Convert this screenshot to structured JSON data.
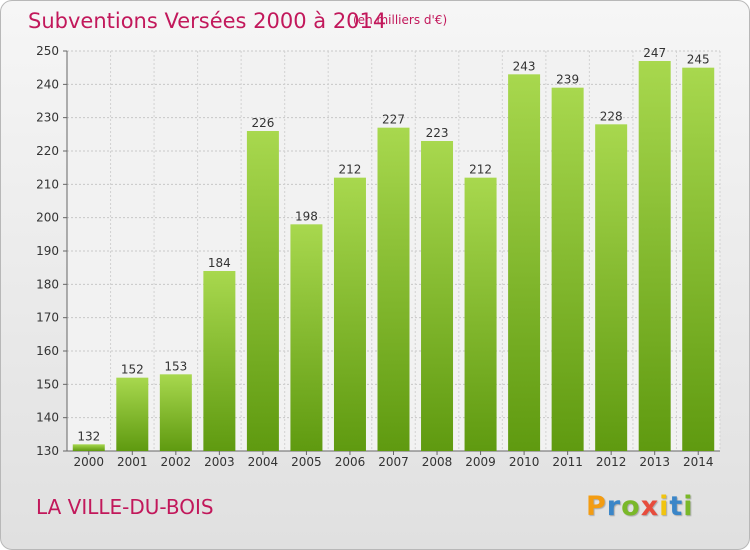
{
  "chart_data": {
    "type": "bar",
    "title": "Subventions Versées 2000 à 2014",
    "unit_label": "(en milliers d'€)",
    "categories": [
      "2000",
      "2001",
      "2002",
      "2003",
      "2004",
      "2005",
      "2006",
      "2007",
      "2008",
      "2009",
      "2010",
      "2011",
      "2012",
      "2013",
      "2014"
    ],
    "values": [
      132,
      152,
      153,
      184,
      226,
      198,
      212,
      227,
      223,
      212,
      243,
      239,
      228,
      247,
      245
    ],
    "ylim": [
      130,
      250
    ],
    "yticks": [
      130,
      140,
      150,
      160,
      170,
      180,
      190,
      200,
      210,
      220,
      230,
      240,
      250
    ],
    "grid": true,
    "bar_color_light": "#a8d84e",
    "bar_color_dark": "#5f9a10"
  },
  "commune": "LA VILLE-DU-BOIS",
  "logo": {
    "letters": [
      "P",
      "r",
      "o",
      "x",
      "i",
      "t",
      "i"
    ],
    "colors": [
      "#f39c12",
      "#3b86c8",
      "#7ab829",
      "#e74c3c",
      "#f1c40f",
      "#3b86c8",
      "#7ab829"
    ]
  }
}
